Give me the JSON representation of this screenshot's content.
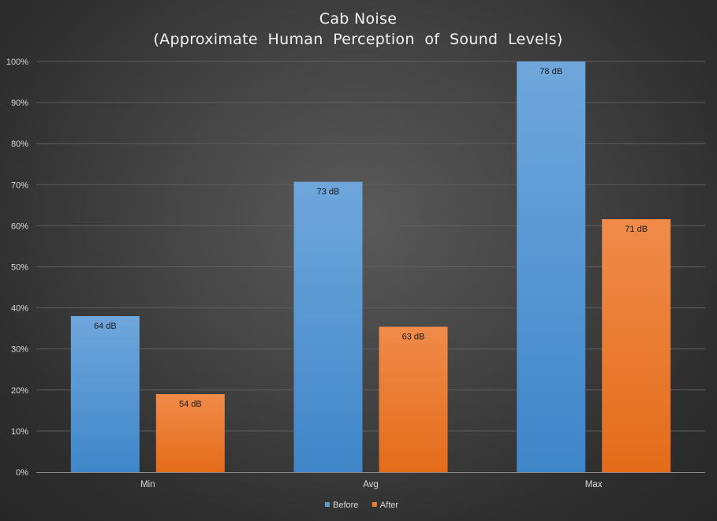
{
  "chart_data": {
    "type": "bar",
    "title": "Cab Noise",
    "subtitle": "(Approximate  Human  Perception  of  Sound  Levels)",
    "categories": [
      "Min",
      "Avg",
      "Max"
    ],
    "series": [
      {
        "name": "Before",
        "values": [
          38,
          70.7,
          100
        ],
        "labels": [
          "64 dB",
          "73 dB",
          "78 dB"
        ]
      },
      {
        "name": "After",
        "values": [
          19,
          35.4,
          61.6
        ],
        "labels": [
          "54 dB",
          "63 dB",
          "71 dB"
        ]
      }
    ],
    "ylim": [
      0,
      100
    ],
    "y_ticks": [
      "0%",
      "10%",
      "20%",
      "30%",
      "40%",
      "50%",
      "60%",
      "70%",
      "80%",
      "90%",
      "100%"
    ],
    "grid": true,
    "legend_position": "bottom"
  },
  "colors": {
    "before": "#5b9bd5",
    "after": "#ed7d31"
  }
}
